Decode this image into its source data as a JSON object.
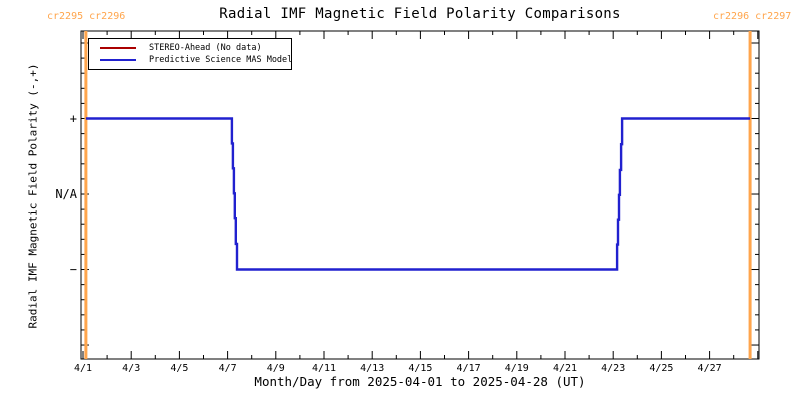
{
  "title": "Radial IMF Magnetic Field Polarity Comparisons",
  "cr_labels": {
    "left": "cr2295 cr2296",
    "right": "cr2296 cr2297"
  },
  "legend": {
    "items": [
      {
        "label": "STEREO-Ahead (No data)",
        "color": "#aa0000"
      },
      {
        "label": "Predictive Science MAS Model",
        "color": "#2121cf"
      }
    ]
  },
  "colors": {
    "cr_orange": "#ffa54c",
    "axis": "#000000",
    "background": "#ffffff"
  },
  "chart_data": {
    "type": "line",
    "title": "Radial IMF Magnetic Field Polarity Comparisons",
    "xlabel": "Month/Day from 2025-04-01 to 2025-04-28 (UT)",
    "ylabel": "Radial IMF Magnetic Field Polarity (-,+)",
    "x_unit": "days since 2025-04-01 00:00 UT",
    "xlim": [
      -0.083,
      28.05
    ],
    "ylim": [
      -2.185,
      2.159
    ],
    "grid": false,
    "legend_position": "top-left",
    "x_major_ticks": [
      {
        "day": 0,
        "label": "4/1"
      },
      {
        "day": 2,
        "label": "4/3"
      },
      {
        "day": 4,
        "label": "4/5"
      },
      {
        "day": 6,
        "label": "4/7"
      },
      {
        "day": 8,
        "label": "4/9"
      },
      {
        "day": 10,
        "label": "4/11"
      },
      {
        "day": 12,
        "label": "4/13"
      },
      {
        "day": 14,
        "label": "4/15"
      },
      {
        "day": 16,
        "label": "4/17"
      },
      {
        "day": 18,
        "label": "4/19"
      },
      {
        "day": 20,
        "label": "4/21"
      },
      {
        "day": 22,
        "label": "4/23"
      },
      {
        "day": 24,
        "label": "4/25"
      },
      {
        "day": 26,
        "label": "4/27"
      },
      {
        "day": 28,
        "label": ""
      }
    ],
    "x_minor_interval_days": 1,
    "y_major_ticks": [
      {
        "value": 2,
        "label": ""
      },
      {
        "value": 1,
        "label": "+"
      },
      {
        "value": 0,
        "label": "N/A"
      },
      {
        "value": -1,
        "label": "−"
      },
      {
        "value": -2,
        "label": ""
      }
    ],
    "y_minor_interval": 0.2,
    "cr_boundaries": [
      {
        "label": "cr2295 cr2296",
        "day": 0.12
      },
      {
        "label": "cr2296 cr2297",
        "day": 27.68
      }
    ],
    "series": [
      {
        "name": "STEREO-Ahead (No data)",
        "color": "#aa0000",
        "points": []
      },
      {
        "name": "Predictive Science MAS Model",
        "color": "#2121cf",
        "points": [
          [
            0.12,
            1
          ],
          [
            6.18,
            1
          ],
          [
            6.18,
            0.67
          ],
          [
            6.22,
            0.67
          ],
          [
            6.22,
            0.34
          ],
          [
            6.26,
            0.34
          ],
          [
            6.26,
            0.01
          ],
          [
            6.3,
            0.01
          ],
          [
            6.3,
            -0.32
          ],
          [
            6.34,
            -0.32
          ],
          [
            6.34,
            -0.66
          ],
          [
            6.39,
            -0.66
          ],
          [
            6.39,
            -1
          ],
          [
            22.16,
            -1
          ],
          [
            22.16,
            -0.67
          ],
          [
            22.2,
            -0.67
          ],
          [
            22.2,
            -0.34
          ],
          [
            22.24,
            -0.34
          ],
          [
            22.24,
            -0.01
          ],
          [
            22.28,
            -0.01
          ],
          [
            22.28,
            0.32
          ],
          [
            22.33,
            0.32
          ],
          [
            22.33,
            0.66
          ],
          [
            22.37,
            0.66
          ],
          [
            22.37,
            1
          ],
          [
            27.68,
            1
          ]
        ]
      }
    ]
  }
}
